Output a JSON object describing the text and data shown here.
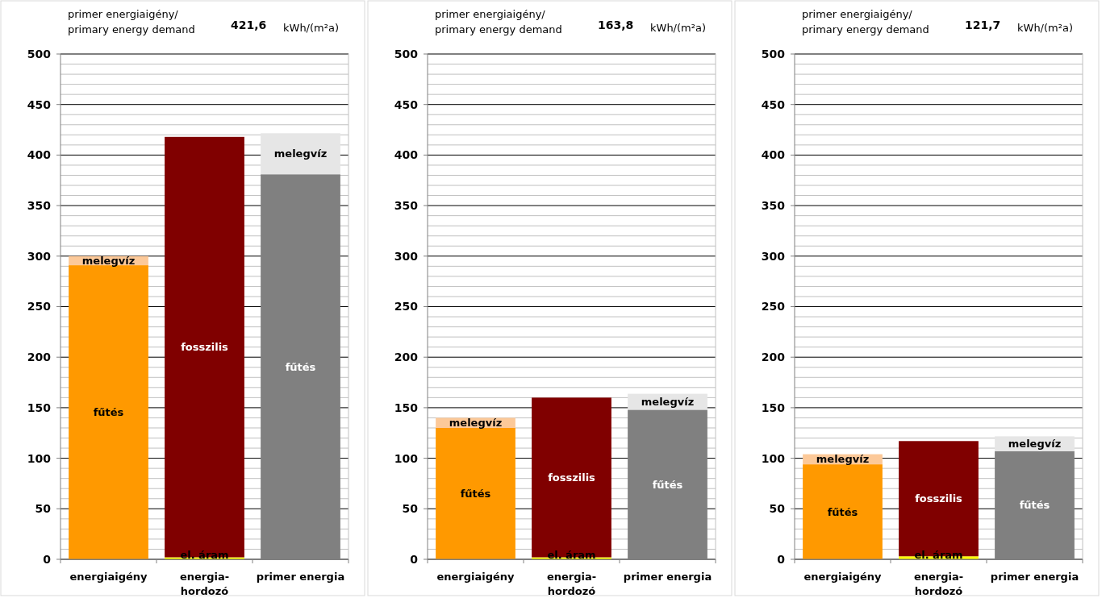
{
  "chart_data": [
    {
      "type": "bar",
      "title": "primer energiaigény/\nprimary energy demand",
      "subtitle": "421,6",
      "annotations": [
        "kWh/(m²a)"
      ],
      "categories": [
        "energiaigény",
        "energia-\nhordozó",
        "primer energia"
      ],
      "stacked": true,
      "grid": true,
      "ylim": [
        0,
        500
      ],
      "yticks": [
        0,
        {
          "value": 10,
          "label": null
        },
        {
          "value": 20,
          "label": null
        },
        {
          "value": 30,
          "label": null
        },
        {
          "value": 40,
          "label": null
        },
        50,
        {
          "value": 60,
          "label": null
        },
        {
          "value": 70,
          "label": null
        },
        {
          "value": 80,
          "label": null
        },
        {
          "value": 90,
          "label": null
        },
        100,
        {
          "value": 110,
          "label": null
        },
        {
          "value": 120,
          "label": null
        },
        {
          "value": 130,
          "label": null
        },
        {
          "value": 140,
          "label": null
        },
        150,
        {
          "value": 160,
          "label": null
        },
        {
          "value": 170,
          "label": null
        },
        {
          "value": 180,
          "label": null
        },
        {
          "value": 190,
          "label": null
        },
        200,
        {
          "value": 210,
          "label": null
        },
        {
          "value": 220,
          "label": null
        },
        {
          "value": 230,
          "label": null
        },
        {
          "value": 240,
          "label": null
        },
        250,
        {
          "value": 260,
          "label": null
        },
        {
          "value": 270,
          "label": null
        },
        {
          "value": 280,
          "label": null
        },
        {
          "value": 290,
          "label": null
        },
        300,
        {
          "value": 310,
          "label": null
        },
        {
          "value": 320,
          "label": null
        },
        {
          "value": 330,
          "label": null
        },
        {
          "value": 340,
          "label": null
        },
        350,
        {
          "value": 360,
          "label": null
        },
        {
          "value": 370,
          "label": null
        },
        {
          "value": 380,
          "label": null
        },
        {
          "value": 390,
          "label": null
        },
        400,
        {
          "value": 410,
          "label": null
        },
        {
          "value": 420,
          "label": null
        },
        {
          "value": 430,
          "label": null
        },
        {
          "value": 440,
          "label": null
        },
        450,
        {
          "value": 460,
          "label": null
        },
        {
          "value": 470,
          "label": null
        },
        {
          "value": 480,
          "label": null
        },
        {
          "value": 490,
          "label": null
        },
        500
      ],
      "series": [
        {
          "colors": [
            "#ff9900",
            null,
            "#808080"
          ],
          "values": [
            291,
            null,
            381
          ],
          "value_labels": [
            "fűtés",
            null,
            "fűtés"
          ]
        },
        {
          "colors": [
            null,
            "#ffff00",
            null
          ],
          "values": [
            null,
            2,
            null
          ],
          "value_labels": [
            null,
            "el. áram",
            null
          ]
        },
        {
          "colors": [
            null,
            "#800000",
            null
          ],
          "values": [
            null,
            416,
            null
          ],
          "value_labels": [
            null,
            "fosszilis",
            null
          ]
        },
        {
          "colors": [
            "#fcc999",
            null,
            "#e6e6e6"
          ],
          "values": [
            9,
            null,
            40.6
          ],
          "value_labels": [
            "melegvíz",
            null,
            "melegvíz"
          ]
        }
      ]
    },
    {
      "type": "bar",
      "title": "primer energiaigény/\nprimary energy demand",
      "subtitle": "163,8",
      "annotations": [
        "kWh/(m²a)"
      ],
      "categories": [
        "energiaigény",
        "energia-\nhordozó",
        "primer energia"
      ],
      "stacked": true,
      "grid": true,
      "ylim": [
        0,
        500
      ],
      "yticks": [
        0,
        {
          "value": 10,
          "label": null
        },
        {
          "value": 20,
          "label": null
        },
        {
          "value": 30,
          "label": null
        },
        {
          "value": 40,
          "label": null
        },
        50,
        {
          "value": 60,
          "label": null
        },
        {
          "value": 70,
          "label": null
        },
        {
          "value": 80,
          "label": null
        },
        {
          "value": 90,
          "label": null
        },
        100,
        {
          "value": 110,
          "label": null
        },
        {
          "value": 120,
          "label": null
        },
        {
          "value": 130,
          "label": null
        },
        {
          "value": 140,
          "label": null
        },
        150,
        {
          "value": 160,
          "label": null
        },
        {
          "value": 170,
          "label": null
        },
        {
          "value": 180,
          "label": null
        },
        {
          "value": 190,
          "label": null
        },
        200,
        {
          "value": 210,
          "label": null
        },
        {
          "value": 220,
          "label": null
        },
        {
          "value": 230,
          "label": null
        },
        {
          "value": 240,
          "label": null
        },
        250,
        {
          "value": 260,
          "label": null
        },
        {
          "value": 270,
          "label": null
        },
        {
          "value": 280,
          "label": null
        },
        {
          "value": 290,
          "label": null
        },
        300,
        {
          "value": 310,
          "label": null
        },
        {
          "value": 320,
          "label": null
        },
        {
          "value": 330,
          "label": null
        },
        {
          "value": 340,
          "label": null
        },
        350,
        {
          "value": 360,
          "label": null
        },
        {
          "value": 370,
          "label": null
        },
        {
          "value": 380,
          "label": null
        },
        {
          "value": 390,
          "label": null
        },
        400,
        {
          "value": 410,
          "label": null
        },
        {
          "value": 420,
          "label": null
        },
        {
          "value": 430,
          "label": null
        },
        {
          "value": 440,
          "label": null
        },
        450,
        {
          "value": 460,
          "label": null
        },
        {
          "value": 470,
          "label": null
        },
        {
          "value": 480,
          "label": null
        },
        {
          "value": 490,
          "label": null
        },
        500
      ],
      "series": [
        {
          "colors": [
            "#ff9900",
            null,
            "#808080"
          ],
          "values": [
            130,
            null,
            148
          ],
          "value_labels": [
            "fűtés",
            null,
            "fűtés"
          ]
        },
        {
          "colors": [
            null,
            "#ffff00",
            null
          ],
          "values": [
            null,
            2,
            null
          ],
          "value_labels": [
            null,
            "el. áram",
            null
          ]
        },
        {
          "colors": [
            null,
            "#800000",
            null
          ],
          "values": [
            null,
            158,
            null
          ],
          "value_labels": [
            null,
            "fosszilis",
            null
          ]
        },
        {
          "colors": [
            "#fcc999",
            null,
            "#e6e6e6"
          ],
          "values": [
            10,
            null,
            15.8
          ],
          "value_labels": [
            "melegvíz",
            null,
            "melegvíz"
          ]
        }
      ]
    },
    {
      "type": "bar",
      "title": "primer energiaigény/\nprimary energy demand",
      "subtitle": "121,7",
      "annotations": [
        "kWh/(m²a)"
      ],
      "categories": [
        "energiaigény",
        "energia-\nhordozó",
        "primer energia"
      ],
      "stacked": true,
      "grid": true,
      "ylim": [
        0,
        500
      ],
      "yticks": [
        0,
        {
          "value": 10,
          "label": null
        },
        {
          "value": 20,
          "label": null
        },
        {
          "value": 30,
          "label": null
        },
        {
          "value": 40,
          "label": null
        },
        50,
        {
          "value": 60,
          "label": null
        },
        {
          "value": 70,
          "label": null
        },
        {
          "value": 80,
          "label": null
        },
        {
          "value": 90,
          "label": null
        },
        100,
        {
          "value": 110,
          "label": null
        },
        {
          "value": 120,
          "label": null
        },
        {
          "value": 130,
          "label": null
        },
        {
          "value": 140,
          "label": null
        },
        150,
        {
          "value": 160,
          "label": null
        },
        {
          "value": 170,
          "label": null
        },
        {
          "value": 180,
          "label": null
        },
        {
          "value": 190,
          "label": null
        },
        200,
        {
          "value": 210,
          "label": null
        },
        {
          "value": 220,
          "label": null
        },
        {
          "value": 230,
          "label": null
        },
        {
          "value": 240,
          "label": null
        },
        250,
        {
          "value": 260,
          "label": null
        },
        {
          "value": 270,
          "label": null
        },
        {
          "value": 280,
          "label": null
        },
        {
          "value": 290,
          "label": null
        },
        300,
        {
          "value": 310,
          "label": null
        },
        {
          "value": 320,
          "label": null
        },
        {
          "value": 330,
          "label": null
        },
        {
          "value": 340,
          "label": null
        },
        350,
        {
          "value": 360,
          "label": null
        },
        {
          "value": 370,
          "label": null
        },
        {
          "value": 380,
          "label": null
        },
        {
          "value": 390,
          "label": null
        },
        400,
        {
          "value": 410,
          "label": null
        },
        {
          "value": 420,
          "label": null
        },
        {
          "value": 430,
          "label": null
        },
        {
          "value": 440,
          "label": null
        },
        450,
        {
          "value": 460,
          "label": null
        },
        {
          "value": 470,
          "label": null
        },
        {
          "value": 480,
          "label": null
        },
        {
          "value": 490,
          "label": null
        },
        500
      ],
      "series": [
        {
          "colors": [
            "#ff9900",
            null,
            "#808080"
          ],
          "values": [
            94,
            null,
            107
          ],
          "value_labels": [
            "fűtés",
            null,
            "fűtés"
          ]
        },
        {
          "colors": [
            null,
            "#ffff00",
            null
          ],
          "values": [
            null,
            3,
            null
          ],
          "value_labels": [
            null,
            "el. áram",
            null
          ]
        },
        {
          "colors": [
            null,
            "#800000",
            null
          ],
          "values": [
            null,
            114,
            null
          ],
          "value_labels": [
            null,
            "fosszilis",
            null
          ]
        },
        {
          "colors": [
            "#fcc999",
            null,
            "#e6e6e6"
          ],
          "values": [
            10,
            null,
            14.7
          ],
          "value_labels": [
            "melegvíz",
            null,
            "melegvíz"
          ]
        }
      ]
    }
  ]
}
